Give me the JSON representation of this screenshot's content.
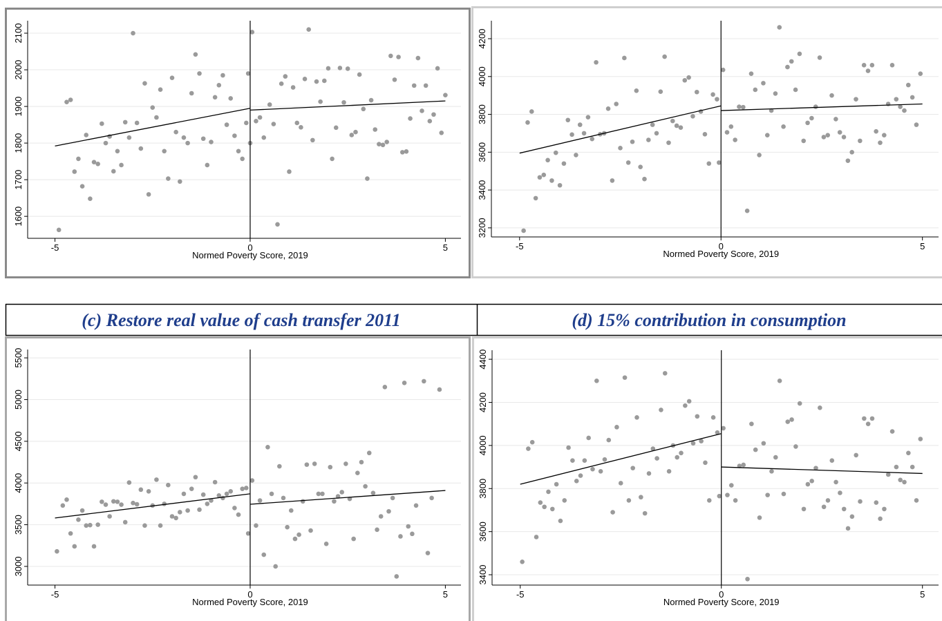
{
  "chart_data": [
    {
      "type": "scatter",
      "xlabel": "Normed Poverty Score, 2019",
      "xlim": [
        -5.7,
        5.4
      ],
      "xticks": [
        -5,
        0,
        5
      ],
      "ylim": [
        1540,
        2134
      ],
      "yticks": [
        1600,
        1700,
        1800,
        1900,
        2000,
        2100
      ],
      "grid": true,
      "cutoff": 0,
      "color": "#9a9a9a",
      "x": [
        -4.9,
        -4.7,
        -4.6,
        -4.5,
        -4.4,
        -4.3,
        -4.2,
        -4.1,
        -4.0,
        -3.9,
        -3.8,
        -3.7,
        -3.6,
        -3.5,
        -3.4,
        -3.3,
        -3.2,
        -3.1,
        -3.0,
        -2.9,
        -2.8,
        -2.7,
        -2.6,
        -2.5,
        -2.4,
        -2.3,
        -2.2,
        -2.1,
        -2.0,
        -1.9,
        -1.8,
        -1.7,
        -1.6,
        -1.5,
        -1.4,
        -1.3,
        -1.2,
        -1.1,
        -1.0,
        -0.9,
        -0.8,
        -0.7,
        -0.6,
        -0.5,
        -0.4,
        -0.3,
        -0.2,
        -0.1,
        -0.05,
        0.0,
        0.05,
        0.15,
        0.25,
        0.35,
        0.5,
        0.6,
        0.7,
        0.8,
        0.9,
        1.0,
        1.1,
        1.2,
        1.3,
        1.4,
        1.5,
        1.6,
        1.7,
        1.8,
        1.9,
        2.0,
        2.1,
        2.2,
        2.3,
        2.4,
        2.5,
        2.6,
        2.7,
        2.8,
        2.9,
        3.0,
        3.1,
        3.2,
        3.3,
        3.4,
        3.5,
        3.6,
        3.7,
        3.8,
        3.9,
        4.0,
        4.1,
        4.2,
        4.3,
        4.4,
        4.5,
        4.6,
        4.7,
        4.8,
        4.9,
        5.0
      ],
      "values": [
        1563,
        1912,
        1918,
        1722,
        1757,
        1682,
        1822,
        1648,
        1748,
        1743,
        1853,
        1800,
        1818,
        1723,
        1778,
        1740,
        1857,
        1815,
        2100,
        1855,
        1785,
        1963,
        1660,
        1897,
        1870,
        1946,
        1778,
        1703,
        1978,
        1830,
        1695,
        1815,
        1800,
        1936,
        2042,
        1990,
        1812,
        1740,
        1803,
        1925,
        1958,
        1985,
        1850,
        1922,
        1820,
        1778,
        1757,
        1855,
        1990,
        1800,
        2103,
        1860,
        1870,
        1815,
        1905,
        1852,
        1578,
        1962,
        1982,
        1722,
        1952,
        1855,
        1843,
        1975,
        2110,
        1808,
        1968,
        1913,
        1970,
        2004,
        1757,
        1842,
        2005,
        1911,
        2003,
        1822,
        1830,
        1987,
        1893,
        1703,
        1917,
        1837,
        1797,
        1795,
        1803,
        2038,
        1973,
        2035,
        1775,
        1777,
        1867,
        1957,
        2032,
        1888,
        1957,
        1860,
        1878,
        2004,
        1828,
        1931
      ],
      "fits": [
        {
          "x": [
            -5,
            0
          ],
          "values": [
            1792,
            1895
          ]
        },
        {
          "x": [
            0,
            5
          ],
          "values": [
            1890,
            1915
          ]
        }
      ]
    },
    {
      "type": "scatter",
      "xlabel": "Normed Poverty Score, 2019",
      "xlim": [
        -5.7,
        5.4
      ],
      "xticks": [
        -5,
        0,
        5
      ],
      "ylim": [
        3152,
        4295
      ],
      "yticks": [
        3200,
        3400,
        3600,
        3800,
        4000,
        4200
      ],
      "grid": true,
      "cutoff": 0,
      "color": "#9a9a9a",
      "x": [
        -4.9,
        -4.8,
        -4.7,
        -4.6,
        -4.5,
        -4.4,
        -4.3,
        -4.2,
        -4.1,
        -4.0,
        -3.9,
        -3.8,
        -3.7,
        -3.6,
        -3.5,
        -3.4,
        -3.3,
        -3.2,
        -3.1,
        -3.0,
        -2.9,
        -2.8,
        -2.7,
        -2.6,
        -2.5,
        -2.4,
        -2.3,
        -2.2,
        -2.1,
        -2.0,
        -1.9,
        -1.8,
        -1.7,
        -1.6,
        -1.5,
        -1.4,
        -1.3,
        -1.2,
        -1.1,
        -1.0,
        -0.9,
        -0.8,
        -0.7,
        -0.6,
        -0.5,
        -0.4,
        -0.3,
        -0.2,
        -0.1,
        -0.05,
        0.05,
        0.15,
        0.25,
        0.35,
        0.45,
        0.55,
        0.65,
        0.75,
        0.85,
        0.95,
        1.05,
        1.15,
        1.25,
        1.35,
        1.45,
        1.55,
        1.65,
        1.75,
        1.85,
        1.95,
        2.05,
        2.15,
        2.25,
        2.35,
        2.45,
        2.55,
        2.65,
        2.75,
        2.85,
        2.95,
        3.05,
        3.15,
        3.25,
        3.35,
        3.45,
        3.55,
        3.65,
        3.75,
        3.85,
        3.95,
        4.05,
        4.15,
        4.25,
        4.35,
        4.45,
        4.55,
        4.65,
        4.75,
        4.85,
        4.95
      ],
      "values": [
        3185,
        3757,
        3815,
        3357,
        3467,
        3480,
        3558,
        3450,
        3597,
        3425,
        3540,
        3770,
        3693,
        3585,
        3745,
        3700,
        3785,
        3670,
        4075,
        3695,
        3700,
        3830,
        3450,
        3855,
        3622,
        4098,
        3545,
        3655,
        3925,
        3522,
        3458,
        3665,
        3745,
        3700,
        3920,
        4105,
        3650,
        3765,
        3740,
        3730,
        3980,
        3995,
        3790,
        3918,
        3815,
        3695,
        3540,
        3905,
        3880,
        3545,
        4035,
        3705,
        3735,
        3665,
        3840,
        3838,
        3290,
        4015,
        3930,
        3585,
        3965,
        3690,
        3820,
        3910,
        4260,
        3735,
        4050,
        4080,
        3930,
        4120,
        3660,
        3755,
        3780,
        3840,
        4100,
        3680,
        3690,
        3900,
        3775,
        3705,
        3680,
        3555,
        3600,
        3880,
        3660,
        4060,
        4030,
        4060,
        3710,
        3650,
        3690,
        3855,
        4060,
        3880,
        3840,
        3820,
        3955,
        3890,
        3745,
        4015
      ],
      "fits": [
        {
          "x": [
            -5,
            0
          ],
          "values": [
            3595,
            3845
          ]
        },
        {
          "x": [
            0,
            5
          ],
          "values": [
            3820,
            3855
          ]
        }
      ]
    },
    {
      "type": "scatter",
      "title": "(c) Restore real value of cash transfer 2011",
      "xlabel": "Normed Poverty Score, 2019",
      "xlim": [
        -5.7,
        5.4
      ],
      "xticks": [
        -5,
        0,
        5
      ],
      "ylim": [
        2776,
        5600
      ],
      "yticks": [
        3000,
        3500,
        4000,
        4500,
        5000,
        5500
      ],
      "grid": true,
      "cutoff": 0,
      "color": "#9a9a9a",
      "x": [
        -4.95,
        -4.8,
        -4.7,
        -4.6,
        -4.5,
        -4.4,
        -4.3,
        -4.2,
        -4.1,
        -4.0,
        -3.9,
        -3.8,
        -3.7,
        -3.6,
        -3.5,
        -3.4,
        -3.3,
        -3.2,
        -3.1,
        -3.0,
        -2.9,
        -2.8,
        -2.7,
        -2.6,
        -2.5,
        -2.4,
        -2.3,
        -2.2,
        -2.1,
        -2.0,
        -1.9,
        -1.8,
        -1.7,
        -1.6,
        -1.5,
        -1.4,
        -1.3,
        -1.2,
        -1.1,
        -1.0,
        -0.9,
        -0.8,
        -0.7,
        -0.6,
        -0.5,
        -0.4,
        -0.3,
        -0.2,
        -0.1,
        -0.05,
        0.05,
        0.15,
        0.25,
        0.35,
        0.45,
        0.55,
        0.65,
        0.75,
        0.85,
        0.95,
        1.05,
        1.15,
        1.25,
        1.35,
        1.45,
        1.55,
        1.65,
        1.75,
        1.85,
        1.95,
        2.05,
        2.15,
        2.25,
        2.35,
        2.45,
        2.55,
        2.65,
        2.75,
        2.85,
        2.95,
        3.05,
        3.15,
        3.25,
        3.35,
        3.45,
        3.55,
        3.65,
        3.75,
        3.85,
        3.95,
        4.05,
        4.15,
        4.25,
        4.45,
        4.55,
        4.65,
        4.85
      ],
      "values": [
        3180,
        3730,
        3800,
        3395,
        3240,
        3560,
        3670,
        3490,
        3495,
        3240,
        3500,
        3775,
        3740,
        3600,
        3780,
        3775,
        3740,
        3530,
        4005,
        3760,
        3745,
        3920,
        3490,
        3900,
        3730,
        4040,
        3490,
        3750,
        3975,
        3600,
        3580,
        3650,
        3870,
        3670,
        3930,
        4070,
        3680,
        3860,
        3750,
        3790,
        4010,
        3850,
        3820,
        3870,
        3900,
        3700,
        3620,
        3930,
        3940,
        3395,
        4030,
        3490,
        3790,
        3140,
        4430,
        3870,
        3000,
        4200,
        3820,
        3470,
        3670,
        3330,
        3380,
        3780,
        4220,
        3430,
        4230,
        3870,
        3870,
        3270,
        4190,
        3780,
        3840,
        3890,
        4230,
        3810,
        3330,
        4120,
        4250,
        3960,
        4360,
        3880,
        3440,
        3600,
        5150,
        3660,
        3820,
        2880,
        3360,
        5200,
        3480,
        3390,
        3730,
        5220,
        3160,
        3820,
        5120
      ],
      "fits": [
        {
          "x": [
            -5,
            0
          ],
          "values": [
            3580,
            3870
          ]
        },
        {
          "x": [
            0,
            5
          ],
          "values": [
            3745,
            3910
          ]
        }
      ]
    },
    {
      "type": "scatter",
      "title": "(d) 15% contribution in consumption",
      "xlabel": "Normed Poverty Score, 2019",
      "xlim": [
        -5.7,
        5.4
      ],
      "xticks": [
        -5,
        0,
        5
      ],
      "ylim": [
        3352,
        4442
      ],
      "yticks": [
        3400,
        3600,
        3800,
        4000,
        4200,
        4400
      ],
      "grid": true,
      "cutoff": 0,
      "color": "#9a9a9a",
      "x": [
        -4.95,
        -4.8,
        -4.7,
        -4.6,
        -4.5,
        -4.4,
        -4.3,
        -4.2,
        -4.1,
        -4.0,
        -3.9,
        -3.8,
        -3.7,
        -3.6,
        -3.5,
        -3.4,
        -3.3,
        -3.2,
        -3.1,
        -3.0,
        -2.9,
        -2.8,
        -2.7,
        -2.6,
        -2.5,
        -2.4,
        -2.3,
        -2.2,
        -2.1,
        -2.0,
        -1.9,
        -1.8,
        -1.7,
        -1.6,
        -1.5,
        -1.4,
        -1.3,
        -1.2,
        -1.1,
        -1.0,
        -0.9,
        -0.8,
        -0.7,
        -0.6,
        -0.5,
        -0.4,
        -0.3,
        -0.2,
        -0.1,
        -0.05,
        0.05,
        0.15,
        0.25,
        0.35,
        0.45,
        0.55,
        0.65,
        0.75,
        0.85,
        0.95,
        1.05,
        1.15,
        1.25,
        1.35,
        1.45,
        1.55,
        1.65,
        1.75,
        1.85,
        1.95,
        2.05,
        2.15,
        2.25,
        2.35,
        2.45,
        2.55,
        2.65,
        2.75,
        2.85,
        2.95,
        3.05,
        3.15,
        3.25,
        3.35,
        3.45,
        3.55,
        3.65,
        3.75,
        3.85,
        3.95,
        4.05,
        4.15,
        4.25,
        4.35,
        4.45,
        4.55,
        4.65,
        4.75,
        4.85,
        4.95
      ],
      "values": [
        3460,
        3985,
        4015,
        3575,
        3735,
        3715,
        3785,
        3705,
        3820,
        3650,
        3745,
        3990,
        3930,
        3835,
        3860,
        3930,
        4035,
        3890,
        4300,
        3880,
        3935,
        4025,
        3690,
        4085,
        3825,
        4315,
        3745,
        3895,
        4130,
        3760,
        3685,
        3870,
        3985,
        3940,
        4165,
        4335,
        3880,
        4000,
        3945,
        3965,
        4185,
        4205,
        4010,
        4135,
        4020,
        3920,
        3745,
        4130,
        4060,
        3765,
        4080,
        3770,
        3815,
        3745,
        3905,
        3910,
        3380,
        4100,
        3980,
        3665,
        4010,
        3770,
        3880,
        3945,
        4300,
        3775,
        4110,
        4120,
        3995,
        4195,
        3705,
        3820,
        3835,
        3895,
        4175,
        3715,
        3745,
        3930,
        3830,
        3780,
        3705,
        3615,
        3670,
        3955,
        3740,
        4125,
        4100,
        4125,
        3735,
        3660,
        3705,
        3865,
        4065,
        3900,
        3840,
        3830,
        3965,
        3900,
        3745,
        4030
      ],
      "fits": [
        {
          "x": [
            -5,
            0
          ],
          "values": [
            3820,
            4055
          ]
        },
        {
          "x": [
            0,
            5
          ],
          "values": [
            3900,
            3870
          ]
        }
      ]
    }
  ]
}
